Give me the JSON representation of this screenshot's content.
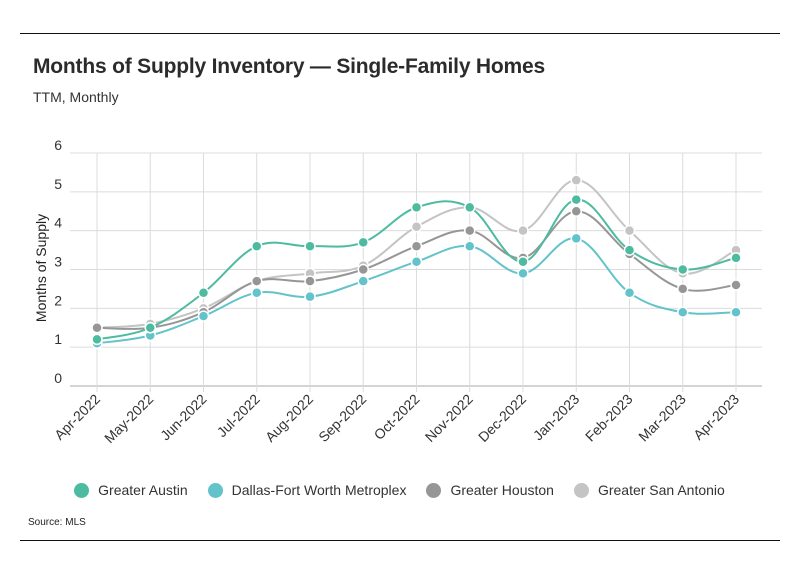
{
  "header": {
    "title": "Months of Supply Inventory — Single-Family Homes",
    "subtitle": "TTM, Monthly"
  },
  "footer": {
    "source": "Source: MLS"
  },
  "chart_data": {
    "type": "line",
    "title": "Months of Supply Inventory — Single-Family Homes",
    "subtitle": "TTM, Monthly",
    "xlabel": "",
    "ylabel": "Months of Supply",
    "ylim": [
      0,
      6
    ],
    "yticks": [
      0,
      1,
      2,
      3,
      4,
      5,
      6
    ],
    "grid": true,
    "legend_position": "bottom",
    "categories": [
      "Apr-2022",
      "May-2022",
      "Jun-2022",
      "Jul-2022",
      "Aug-2022",
      "Sep-2022",
      "Oct-2022",
      "Nov-2022",
      "Dec-2022",
      "Jan-2023",
      "Feb-2023",
      "Mar-2023",
      "Apr-2023"
    ],
    "series": [
      {
        "name": "Greater Austin",
        "color": "#4dbba0",
        "values": [
          1.2,
          1.5,
          2.4,
          3.6,
          3.6,
          3.7,
          4.6,
          4.6,
          3.2,
          4.8,
          3.5,
          3.0,
          3.3
        ]
      },
      {
        "name": "Dallas-Fort Worth Metroplex",
        "color": "#63c3cb",
        "values": [
          1.1,
          1.3,
          1.8,
          2.4,
          2.3,
          2.7,
          3.2,
          3.6,
          2.9,
          3.8,
          2.4,
          1.9,
          1.9
        ]
      },
      {
        "name": "Greater Houston",
        "color": "#969696",
        "values": [
          1.5,
          1.5,
          1.9,
          2.7,
          2.7,
          3.0,
          3.6,
          4.0,
          3.3,
          4.5,
          3.4,
          2.5,
          2.6
        ]
      },
      {
        "name": "Greater San Antonio",
        "color": "#c4c4c4",
        "values": [
          1.5,
          1.6,
          2.0,
          2.7,
          2.9,
          3.1,
          4.1,
          4.6,
          4.0,
          5.3,
          4.0,
          2.9,
          3.5
        ]
      }
    ]
  }
}
